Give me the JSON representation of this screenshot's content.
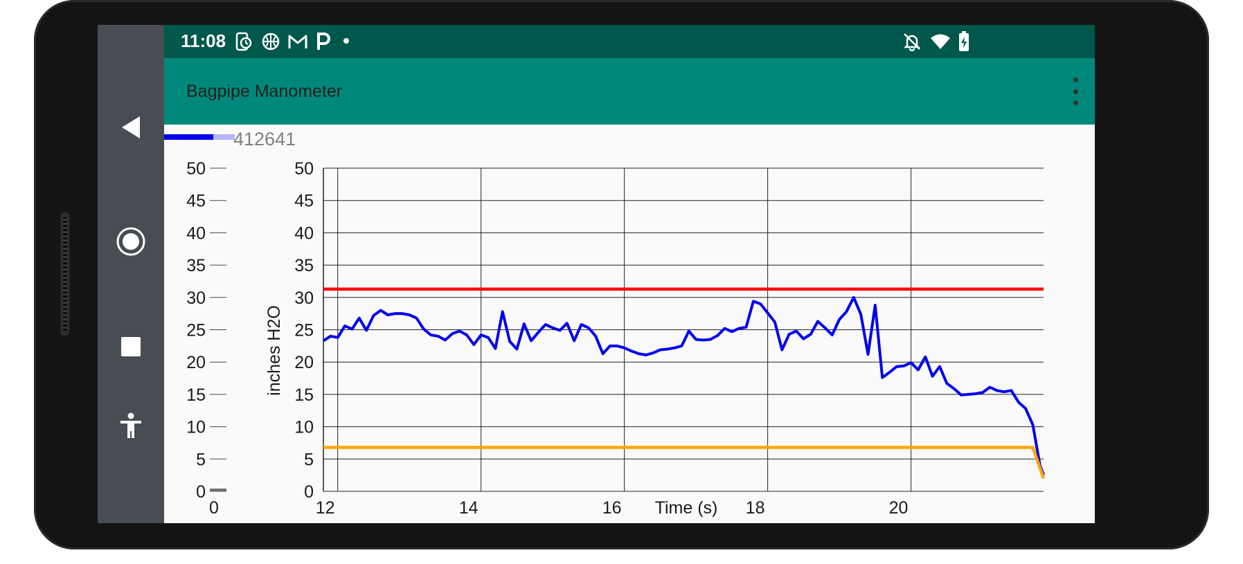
{
  "status_bar": {
    "time": "11:08",
    "left_icons": [
      "phone-clock-icon",
      "basketball-icon",
      "gmail-icon",
      "p-app-icon",
      "dot-icon"
    ],
    "right_icons": [
      "notifications-off-icon",
      "wifi-icon",
      "battery-charging-icon"
    ]
  },
  "app_bar": {
    "title": "Bagpipe Manometer",
    "menu_icon": "more-vert-icon"
  },
  "nav_bar": {
    "icons": [
      "back-icon",
      "home-icon",
      "recents-icon",
      "accessibility-icon"
    ]
  },
  "counter": {
    "value": "412641",
    "progress_fraction": 0.7
  },
  "colors": {
    "status_bar": "#00574b",
    "app_bar": "#00897b",
    "pressure_line": "#0000ee",
    "upper_limit": "#ff0000",
    "lower_limit": "#ffa500"
  },
  "chart_data": [
    {
      "type": "bar",
      "categories": [
        "0"
      ],
      "values": [
        0
      ],
      "ylim": [
        0,
        50
      ],
      "yticks": [
        "0",
        "5",
        "10",
        "15",
        "20",
        "25",
        "30",
        "35",
        "40",
        "45",
        "50"
      ],
      "xticks": [
        "0"
      ],
      "grid": false
    },
    {
      "type": "line",
      "xlabel": "Time (s)",
      "ylabel": "inches H2O",
      "xlim": [
        11.8,
        21.85
      ],
      "ylim": [
        0,
        50
      ],
      "xticks": [
        "12",
        "14",
        "16",
        "18",
        "20"
      ],
      "yticks": [
        "0",
        "5",
        "10",
        "15",
        "20",
        "25",
        "30",
        "35",
        "40",
        "45",
        "50"
      ],
      "grid": true,
      "series": [
        {
          "color": "#0000ee",
          "x": [
            11.8,
            11.9,
            12.0,
            12.1,
            12.2,
            12.3,
            12.4,
            12.5,
            12.6,
            12.7,
            12.8,
            12.9,
            13.0,
            13.1,
            13.2,
            13.3,
            13.4,
            13.5,
            13.6,
            13.7,
            13.8,
            13.9,
            14.0,
            14.1,
            14.2,
            14.3,
            14.4,
            14.5,
            14.6,
            14.7,
            14.8,
            14.9,
            15.0,
            15.1,
            15.2,
            15.3,
            15.4,
            15.5,
            15.6,
            15.7,
            15.8,
            15.9,
            16.0,
            16.1,
            16.2,
            16.3,
            16.4,
            16.5,
            16.6,
            16.7,
            16.8,
            16.9,
            17.0,
            17.1,
            17.2,
            17.3,
            17.4,
            17.5,
            17.6,
            17.7,
            17.8,
            17.9,
            18.0,
            18.1,
            18.2,
            18.3,
            18.4,
            18.5,
            18.6,
            18.7,
            18.8,
            18.9,
            19.0,
            19.1,
            19.2,
            19.3,
            19.4,
            19.5,
            19.6,
            19.7,
            19.8,
            19.9,
            20.0,
            20.1,
            20.2,
            20.3,
            20.4,
            20.5,
            20.6,
            20.7,
            20.8,
            20.9,
            21.0,
            21.1,
            21.2,
            21.3,
            21.4,
            21.5,
            21.6,
            21.7,
            21.8,
            21.85
          ],
          "y": [
            23.3,
            24.0,
            23.8,
            25.6,
            25.1,
            26.8,
            24.9,
            27.2,
            28.0,
            27.3,
            27.5,
            27.5,
            27.3,
            26.8,
            25.1,
            24.2,
            24.0,
            23.4,
            24.4,
            24.8,
            24.2,
            22.7,
            24.2,
            23.8,
            22.1,
            27.8,
            23.2,
            22.0,
            25.9,
            23.3,
            24.6,
            25.8,
            25.3,
            24.9,
            26.0,
            23.3,
            25.8,
            25.3,
            24.0,
            21.3,
            22.5,
            22.5,
            22.2,
            21.7,
            21.3,
            21.1,
            21.4,
            21.9,
            22.0,
            22.2,
            22.5,
            24.8,
            23.5,
            23.4,
            23.5,
            24.1,
            25.2,
            24.7,
            25.2,
            25.4,
            29.4,
            29.0,
            27.6,
            26.2,
            21.9,
            24.3,
            24.8,
            23.6,
            24.3,
            26.3,
            25.3,
            24.2,
            26.6,
            27.8,
            30.0,
            27.4,
            21.2,
            28.8,
            17.6,
            18.4,
            19.3,
            19.4,
            19.9,
            18.8,
            20.8,
            17.8,
            19.3,
            16.7,
            15.9,
            14.9,
            15.0,
            15.1,
            15.3,
            16.1,
            15.6,
            15.4,
            15.6,
            13.8,
            12.8,
            10.3,
            4.0,
            2.5
          ]
        },
        {
          "color": "#ff0000",
          "x": [
            11.8,
            21.85
          ],
          "y": [
            31.3,
            31.3
          ]
        },
        {
          "color": "#ffa500",
          "x": [
            11.8,
            21.7,
            21.85
          ],
          "y": [
            6.8,
            6.8,
            2.0
          ]
        }
      ]
    }
  ]
}
